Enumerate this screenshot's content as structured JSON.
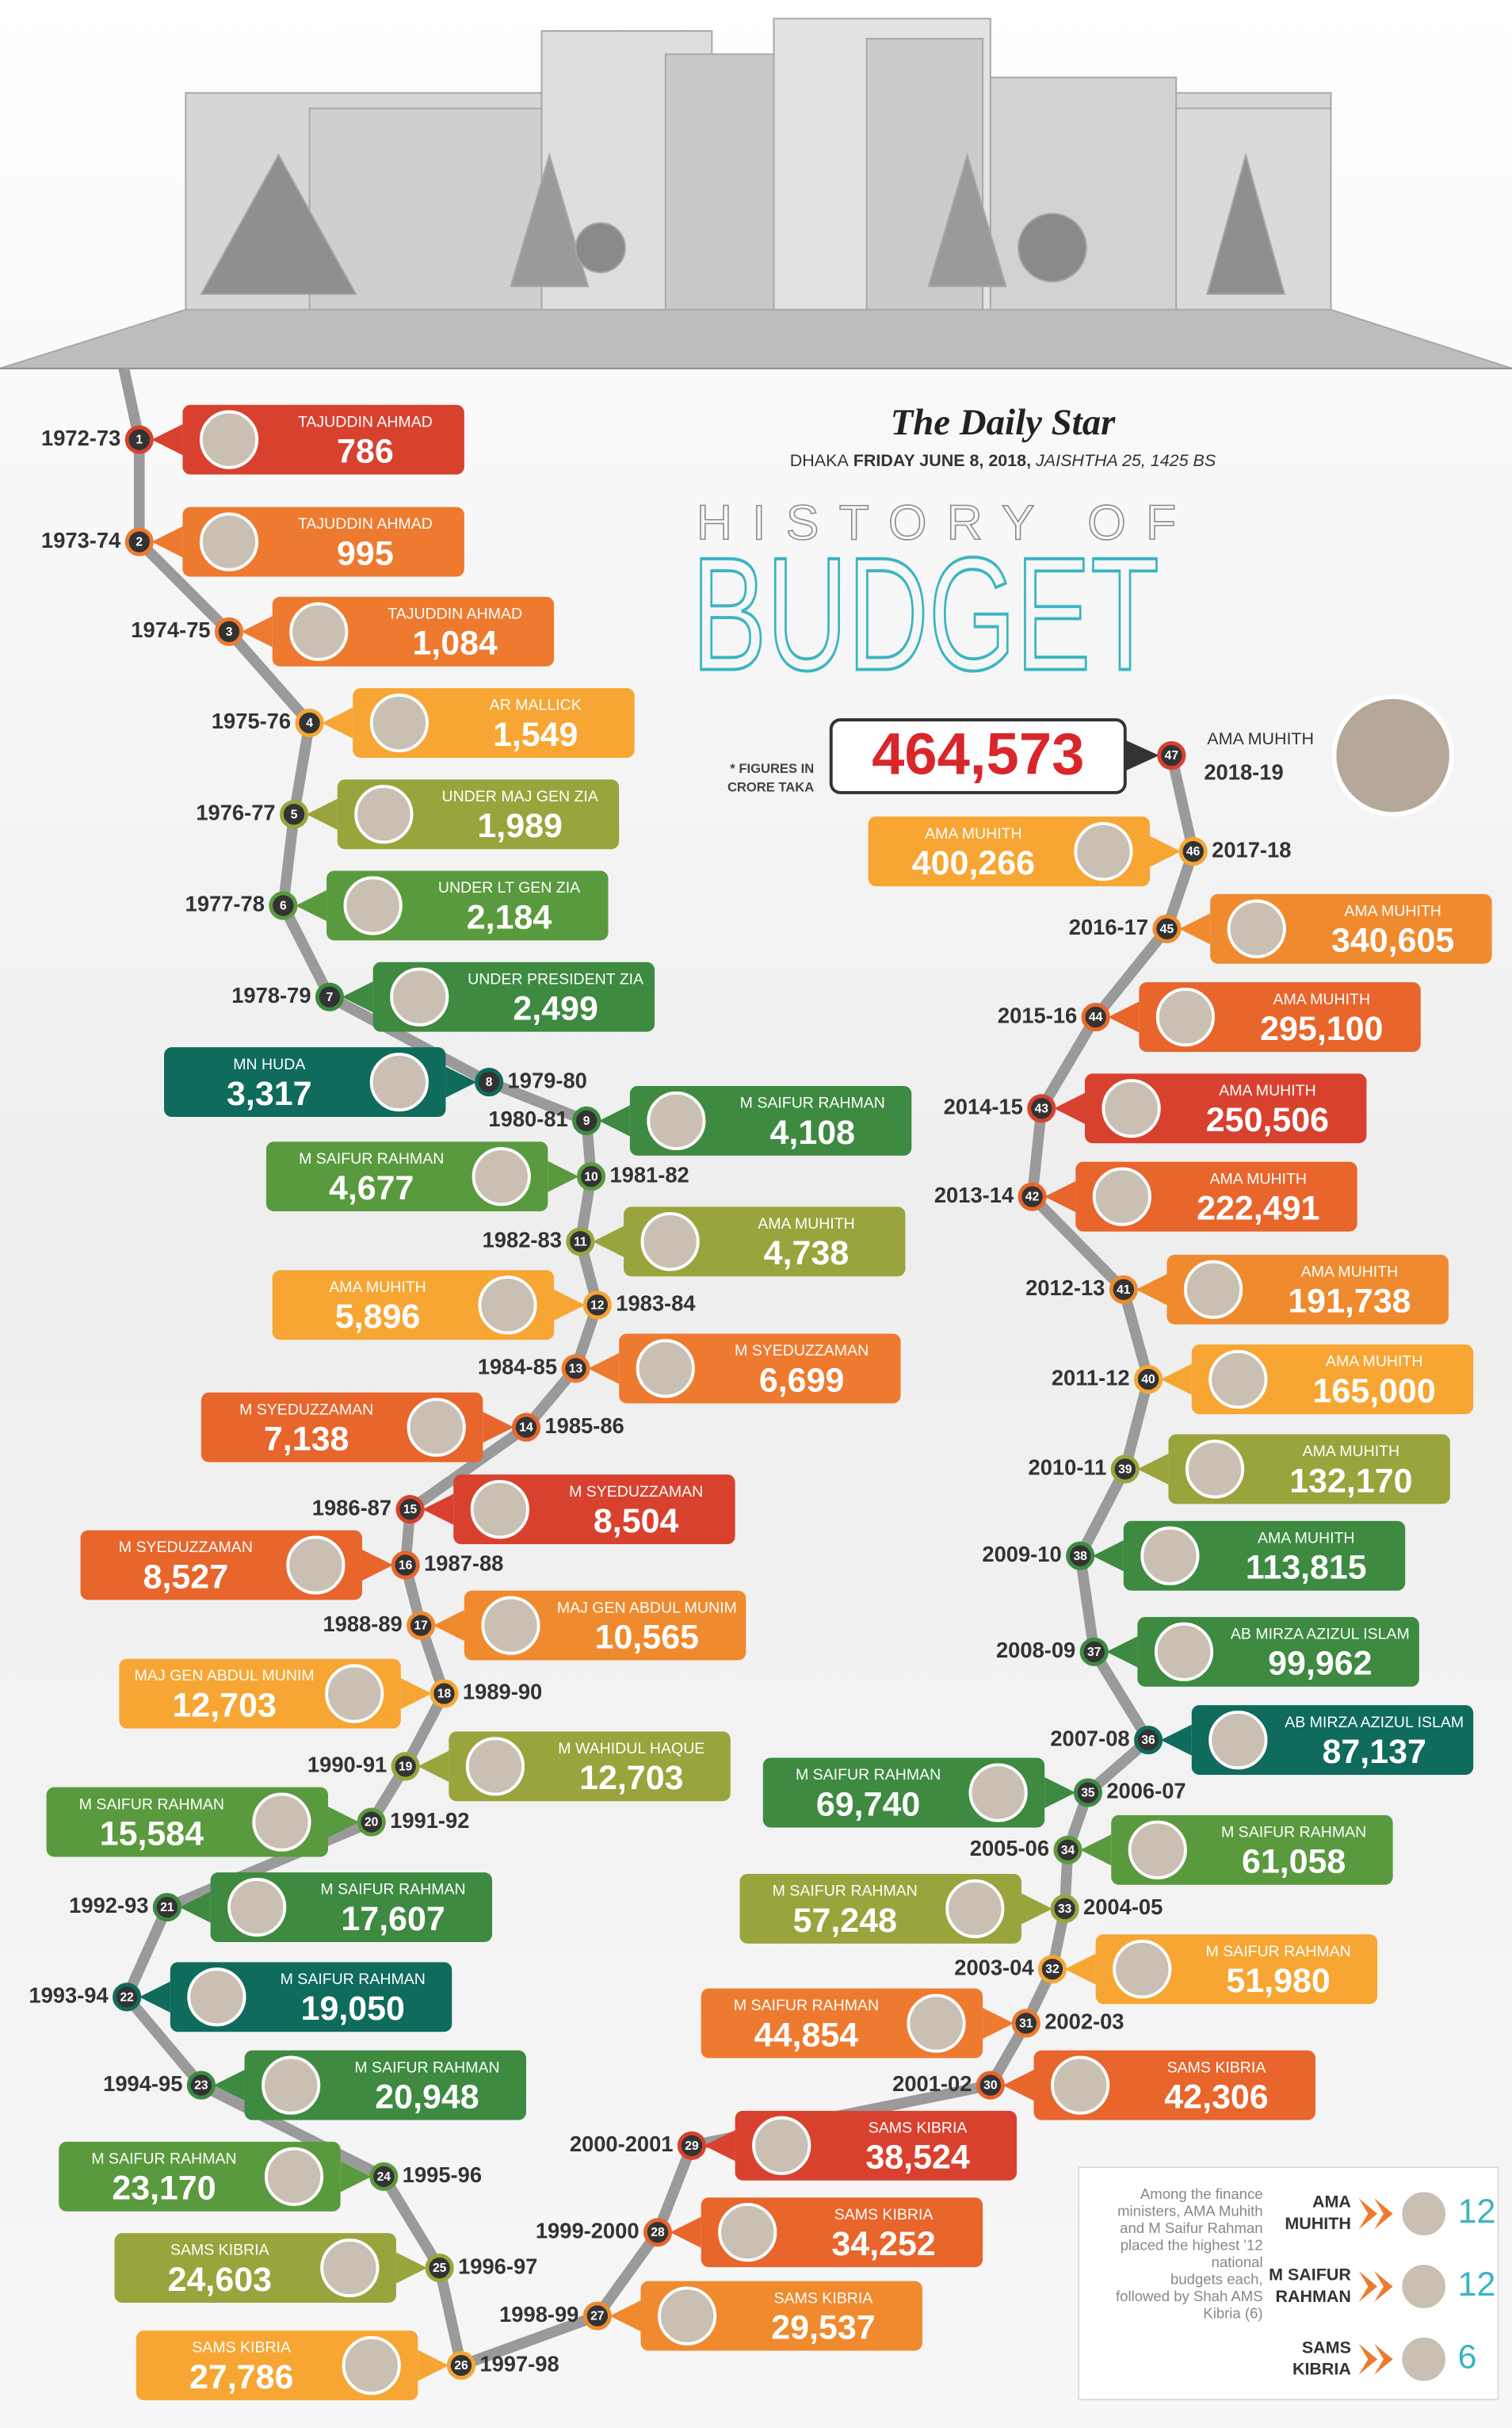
{
  "masthead": "The Daily Star",
  "dateline": {
    "place": "DHAKA",
    "date": "FRIDAY JUNE 8, 2018,",
    "local_date": "JAISHTHA 25, 1425 BS"
  },
  "title": {
    "line1": "HISTORY OF",
    "line2": "BUDGET"
  },
  "note": [
    "* FIGURES IN",
    "CRORE TAKA"
  ],
  "budgets": [
    {
      "number": "1",
      "year": "1972-73",
      "minister": "TAJUDDIN AHMAD",
      "amount": "786"
    },
    {
      "number": "2",
      "year": "1973-74",
      "minister": "TAJUDDIN AHMAD",
      "amount": "995"
    },
    {
      "number": "3",
      "year": "1974-75",
      "minister": "TAJUDDIN AHMAD",
      "amount": "1,084"
    },
    {
      "number": "4",
      "year": "1975-76",
      "minister": "AR MALLICK",
      "amount": "1,549"
    },
    {
      "number": "5",
      "year": "1976-77",
      "minister": "UNDER MAJ GEN ZIA",
      "amount": "1,989"
    },
    {
      "number": "6",
      "year": "1977-78",
      "minister": "UNDER LT GEN  ZIA",
      "amount": "2,184"
    },
    {
      "number": "7",
      "year": "1978-79",
      "minister": "UNDER PRESIDENT ZIA",
      "amount": "2,499"
    },
    {
      "number": "8",
      "year": "1979-80",
      "minister": "MN HUDA",
      "amount": "3,317"
    },
    {
      "number": "9",
      "year": "1980-81",
      "minister": "M SAIFUR RAHMAN",
      "amount": "4,108"
    },
    {
      "number": "10",
      "year": "1981-82",
      "minister": "M SAIFUR RAHMAN",
      "amount": "4,677"
    },
    {
      "number": "11",
      "year": "1982-83",
      "minister": "AMA MUHITH",
      "amount": "4,738"
    },
    {
      "number": "12",
      "year": "1983-84",
      "minister": "AMA MUHITH",
      "amount": "5,896"
    },
    {
      "number": "13",
      "year": "1984-85",
      "minister": "M SYEDUZZAMAN",
      "amount": "6,699"
    },
    {
      "number": "14",
      "year": "1985-86",
      "minister": "M SYEDUZZAMAN",
      "amount": "7,138"
    },
    {
      "number": "15",
      "year": "1986-87",
      "minister": "M SYEDUZZAMAN",
      "amount": "8,504"
    },
    {
      "number": "16",
      "year": "1987-88",
      "minister": "M SYEDUZZAMAN",
      "amount": "8,527"
    },
    {
      "number": "17",
      "year": "1988-89",
      "minister": "MAJ GEN ABDUL MUNIM",
      "amount": "10,565"
    },
    {
      "number": "18",
      "year": "1989-90",
      "minister": "MAJ GEN ABDUL MUNIM",
      "amount": "12,703"
    },
    {
      "number": "19",
      "year": "1990-91",
      "minister": "M WAHIDUL HAQUE",
      "amount": "12,703"
    },
    {
      "number": "20",
      "year": "1991-92",
      "minister": "M SAIFUR RAHMAN",
      "amount": "15,584"
    },
    {
      "number": "21",
      "year": "1992-93",
      "minister": "M SAIFUR  RAHMAN",
      "amount": "17,607"
    },
    {
      "number": "22",
      "year": "1993-94",
      "minister": "M SAIFUR RAHMAN",
      "amount": "19,050"
    },
    {
      "number": "23",
      "year": "1994-95",
      "minister": "M SAIFUR RAHMAN",
      "amount": "20,948"
    },
    {
      "number": "24",
      "year": "1995-96",
      "minister": "M SAIFUR RAHMAN",
      "amount": "23,170"
    },
    {
      "number": "25",
      "year": "1996-97",
      "minister": "SAMS KIBRIA",
      "amount": "24,603"
    },
    {
      "number": "26",
      "year": "1997-98",
      "minister": "SAMS KIBRIA",
      "amount": "27,786"
    },
    {
      "number": "27",
      "year": "1998-99",
      "minister": "SAMS KIBRIA",
      "amount": "29,537"
    },
    {
      "number": "28",
      "year": "1999-2000",
      "minister": "SAMS KIBRIA",
      "amount": "34,252"
    },
    {
      "number": "29",
      "year": "2000-2001",
      "minister": "SAMS KIBRIA",
      "amount": "38,524"
    },
    {
      "number": "30",
      "year": "2001-02",
      "minister": "SAMS KIBRIA",
      "amount": "42,306"
    },
    {
      "number": "31",
      "year": "2002-03",
      "minister": "M SAIFUR RAHMAN",
      "amount": "44,854"
    },
    {
      "number": "32",
      "year": "2003-04",
      "minister": "M SAIFUR RAHMAN",
      "amount": "51,980"
    },
    {
      "number": "33",
      "year": "2004-05",
      "minister": "M SAIFUR RAHMAN",
      "amount": "57,248"
    },
    {
      "number": "34",
      "year": "2005-06",
      "minister": "M SAIFUR RAHMAN",
      "amount": "61,058"
    },
    {
      "number": "35",
      "year": "2006-07",
      "minister": "M SAIFUR RAHMAN",
      "amount": "69,740"
    },
    {
      "number": "36",
      "year": "2007-08",
      "minister": "AB MIRZA AZIZUL ISLAM",
      "amount": "87,137"
    },
    {
      "number": "37",
      "year": "2008-09",
      "minister": "AB MIRZA AZIZUL ISLAM",
      "amount": "99,962"
    },
    {
      "number": "38",
      "year": "2009-10",
      "minister": "AMA MUHITH",
      "amount": "113,815"
    },
    {
      "number": "39",
      "year": "2010-11",
      "minister": "AMA MUHITH",
      "amount": "132,170"
    },
    {
      "number": "40",
      "year": "2011-12",
      "minister": "AMA MUHITH",
      "amount": "165,000"
    },
    {
      "number": "41",
      "year": "2012-13",
      "minister": "AMA MUHITH",
      "amount": "191,738"
    },
    {
      "number": "42",
      "year": "2013-14",
      "minister": "AMA MUHITH",
      "amount": "222,491"
    },
    {
      "number": "43",
      "year": "2014-15",
      "minister": "AMA MUHITH",
      "amount": "250,506"
    },
    {
      "number": "44",
      "year": "2015-16",
      "minister": "AMA MUHITH",
      "amount": "295,100"
    },
    {
      "number": "45",
      "year": "2016-17",
      "minister": "AMA MUHITH",
      "amount": "340,605"
    },
    {
      "number": "46",
      "year": "2017-18",
      "minister": "AMA MUHITH",
      "amount": "400,266"
    },
    {
      "number": "47",
      "year": "2018-19",
      "minister": "AMA MUHITH",
      "amount": "464,573"
    }
  ],
  "summary": {
    "text": [
      "Among the finance",
      "ministers, AMA Muhith",
      "and M Saifur Rahman",
      "placed the highest '12",
      "national",
      "budgets each,",
      "followed by Shah AMS",
      "Kibria (6)"
    ],
    "ministers": [
      {
        "name": [
          "AMA",
          "MUHITH"
        ],
        "count": "12"
      },
      {
        "name": [
          "M SAIFUR",
          "RAHMAN"
        ],
        "count": "12"
      },
      {
        "name": [
          "SAMS",
          "KIBRIA"
        ],
        "count": "6"
      }
    ]
  }
}
